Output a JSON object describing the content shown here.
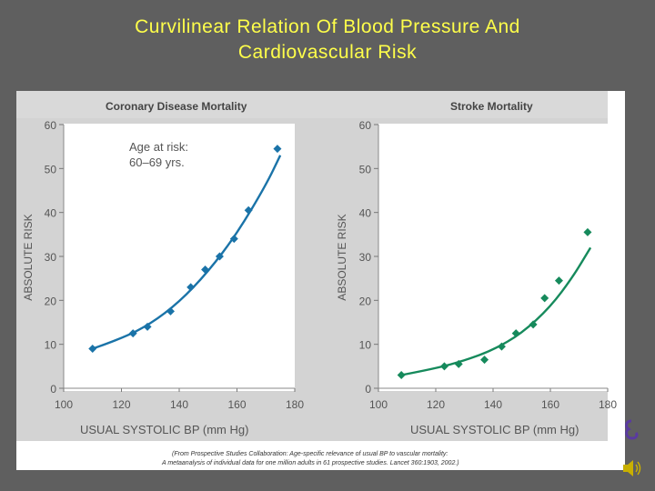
{
  "slide": {
    "title_line1": "Curvilinear Relation Of Blood Pressure And",
    "title_line2": "Cardiovascular Risk",
    "background": "#5f5f5f",
    "title_color": "#ffff4a"
  },
  "citation": {
    "line1": "(From Prospective Studies Collaboration: Age-specific relevance of usual BP to vascular mortality:",
    "line2": "A metaanalysis of individual data for one million adults in 61 prospective studies. Lancet 360:1903, 2002.)"
  },
  "icons": {
    "speaker": "speaker-icon",
    "logo": "logo-mark-icon"
  },
  "chart_data": [
    {
      "type": "scatter",
      "title": "Coronary Disease Mortality",
      "annotation": [
        "Age at risk:",
        "60–69 yrs."
      ],
      "xlabel": "USUAL SYSTOLIC BP (mm Hg)",
      "ylabel": "ABSOLUTE RISK",
      "xlim": [
        100,
        180
      ],
      "ylim": [
        0,
        60
      ],
      "xticks": [
        100,
        120,
        140,
        160,
        180
      ],
      "yticks": [
        0,
        10,
        20,
        30,
        40,
        50,
        60
      ],
      "color": "#1a73a8",
      "points": [
        {
          "x": 110,
          "y": 9
        },
        {
          "x": 124,
          "y": 12.5
        },
        {
          "x": 129,
          "y": 14
        },
        {
          "x": 137,
          "y": 17.5
        },
        {
          "x": 144,
          "y": 23
        },
        {
          "x": 149,
          "y": 27
        },
        {
          "x": 154,
          "y": 30
        },
        {
          "x": 159,
          "y": 34
        },
        {
          "x": 164,
          "y": 40.5
        },
        {
          "x": 174,
          "y": 54.5
        }
      ],
      "curve": [
        [
          110,
          9
        ],
        [
          120,
          11.3
        ],
        [
          130,
          14.6
        ],
        [
          140,
          19.6
        ],
        [
          150,
          26.5
        ],
        [
          160,
          35.2
        ],
        [
          170,
          46.2
        ],
        [
          175,
          53
        ]
      ]
    },
    {
      "type": "scatter",
      "title": "Stroke Mortality",
      "xlabel": "USUAL SYSTOLIC BP (mm Hg)",
      "ylabel": "ABSOLUTE RISK",
      "xlim": [
        100,
        180
      ],
      "ylim": [
        0,
        60
      ],
      "xticks": [
        100,
        120,
        140,
        160,
        180
      ],
      "yticks": [
        0,
        10,
        20,
        30,
        40,
        50,
        60
      ],
      "color": "#168a5c",
      "points": [
        {
          "x": 108,
          "y": 3
        },
        {
          "x": 123,
          "y": 5
        },
        {
          "x": 128,
          "y": 5.5
        },
        {
          "x": 137,
          "y": 6.5
        },
        {
          "x": 143,
          "y": 9.5
        },
        {
          "x": 148,
          "y": 12.5
        },
        {
          "x": 154,
          "y": 14.5
        },
        {
          "x": 158,
          "y": 20.5
        },
        {
          "x": 163,
          "y": 24.5
        },
        {
          "x": 173,
          "y": 35.5
        }
      ],
      "curve": [
        [
          108,
          3
        ],
        [
          120,
          4.5
        ],
        [
          130,
          6.3
        ],
        [
          140,
          8.7
        ],
        [
          150,
          12.5
        ],
        [
          160,
          18.5
        ],
        [
          168,
          25.5
        ],
        [
          174,
          32
        ]
      ]
    }
  ]
}
